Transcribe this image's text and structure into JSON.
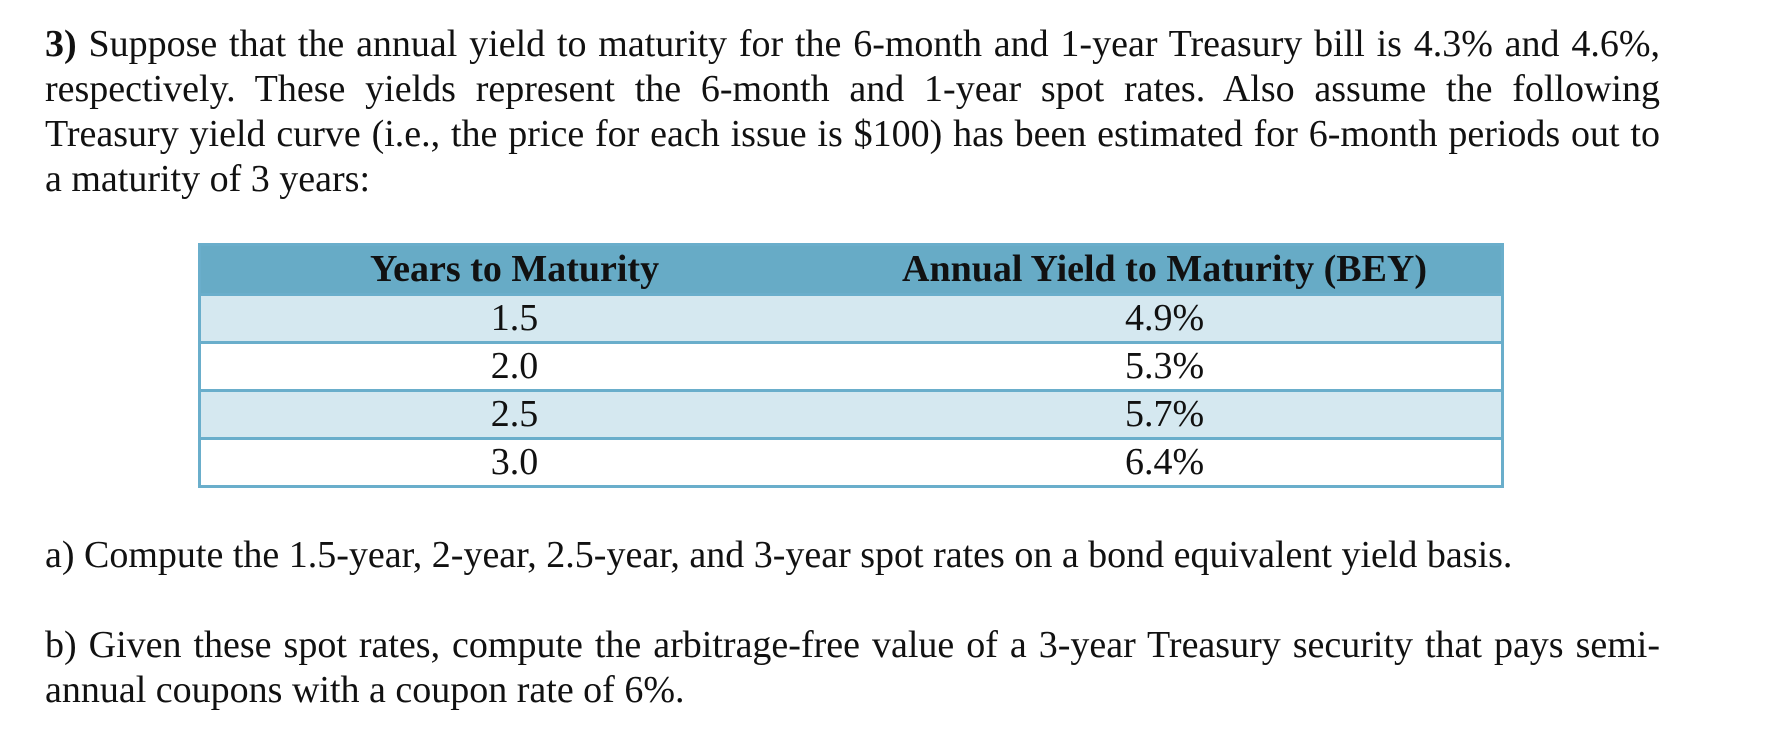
{
  "problem": {
    "number": "3)",
    "intro": "Suppose that the annual yield to maturity for the 6-month and 1-year Treasury bill is 4.3% and 4.6%, respectively. These yields represent the 6-month and 1-year spot rates. Also assume the following Treasury yield curve (i.e., the price for each issue is $100) has been estimated for 6-month periods out to a maturity of 3 years:"
  },
  "table": {
    "headers": [
      "Years to Maturity",
      "Annual Yield to Maturity (BEY)"
    ],
    "rows": [
      [
        "1.5",
        "4.9%"
      ],
      [
        "2.0",
        "5.3%"
      ],
      [
        "2.5",
        "5.7%"
      ],
      [
        "3.0",
        "6.4%"
      ]
    ]
  },
  "questions": {
    "a": "a) Compute the 1.5-year, 2-year, 2.5-year, and 3-year spot rates on a bond equivalent yield basis.",
    "b": "b) Given these spot rates, compute the arbitrage-free value of a 3-year Treasury security that pays semi-annual coupons with a coupon rate of 6%."
  }
}
